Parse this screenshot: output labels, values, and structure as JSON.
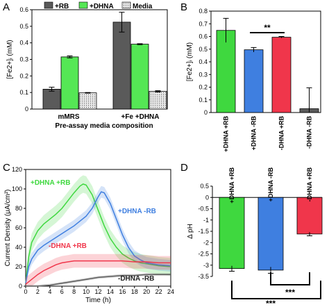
{
  "panel_letters": [
    "A",
    "B",
    "C",
    "D"
  ],
  "colors": {
    "rb": "#5a5a5a",
    "dhna": "#55e755",
    "media_fill": "#e8e8e8",
    "green": "#3fd83f",
    "blue": "#3f7fe0",
    "red": "#f0364b",
    "dark": "#5a5a5a"
  },
  "chart_data": [
    {
      "panel": "A",
      "type": "bar",
      "title": "",
      "xlabel": "Pre-assay media composition",
      "ylabel": "[Fe2+]ᵢ (mM)",
      "ylim": [
        0,
        0.6
      ],
      "yticks": [
        "0",
        "0.1",
        "0.2",
        "0.3",
        "0.4",
        "0.5",
        "0.6"
      ],
      "categories": [
        "mMRS",
        "+Fe +DHNA"
      ],
      "legend_position": "top",
      "series": [
        {
          "name": "+RB",
          "values": [
            0.12,
            0.525
          ],
          "errors": [
            0.012,
            0.06
          ]
        },
        {
          "name": "+DHNA",
          "values": [
            0.315,
            0.392
          ],
          "errors": [
            0.006,
            0.003
          ]
        },
        {
          "name": "Media",
          "values": [
            0.098,
            0.107
          ],
          "errors": [
            0.002,
            0.004
          ]
        }
      ]
    },
    {
      "panel": "B",
      "type": "bar",
      "title": "",
      "xlabel": "",
      "ylabel": "[Fe2+]ᵢ (mM)",
      "ylim": [
        0,
        0.8
      ],
      "yticks": [
        "0",
        "0.1",
        "0.2",
        "0.3",
        "0.4",
        "0.5",
        "0.6",
        "0.7",
        "0.8"
      ],
      "categories": [
        "+DHNA +RB",
        "+DHNA -RB",
        "-DHNA +RB",
        "-DHNA -RB"
      ],
      "values": [
        0.648,
        0.495,
        0.594,
        0.03
      ],
      "errors": [
        0.095,
        0.018,
        0.006,
        0.165
      ],
      "annotation": "**"
    },
    {
      "panel": "C",
      "type": "line",
      "title": "",
      "xlabel": "Time (h)",
      "ylabel": "Current Density (μA/cm²)",
      "xlim": [
        0,
        24
      ],
      "ylim": [
        0,
        120
      ],
      "xticks": [
        "0",
        "2",
        "4",
        "6",
        "8",
        "10",
        "12",
        "14",
        "16",
        "18",
        "20",
        "22",
        "24"
      ],
      "yticks": [
        "0",
        "20",
        "40",
        "60",
        "80",
        "100",
        "120"
      ],
      "series": [
        {
          "name": "+DHNA +RB",
          "x": [
            0,
            0.5,
            1,
            2,
            3,
            4,
            5,
            6,
            7,
            8,
            9,
            9.5,
            10,
            11,
            12,
            13,
            14,
            15,
            16,
            17,
            18,
            19,
            20,
            22,
            24
          ],
          "y": [
            3,
            30,
            45,
            57,
            64,
            69,
            74,
            80,
            88,
            96,
            103,
            105,
            104,
            94,
            78,
            62,
            49,
            40,
            33,
            29,
            26,
            24,
            23,
            21,
            20
          ],
          "band": 9
        },
        {
          "name": "+DHNA -RB",
          "x": [
            0,
            0.5,
            1,
            2,
            3,
            4,
            5,
            6,
            7,
            8,
            9,
            10,
            11,
            12,
            12.5,
            13,
            14,
            15,
            16,
            17,
            18,
            19,
            20,
            22,
            24
          ],
          "y": [
            3,
            20,
            28,
            37,
            42,
            46,
            50,
            54,
            58,
            62,
            67,
            72,
            80,
            92,
            97,
            96,
            85,
            69,
            53,
            40,
            31,
            27,
            24,
            22,
            21
          ],
          "band": 6
        },
        {
          "name": "-DHNA +RB",
          "x": [
            0,
            1,
            2,
            3,
            4,
            5,
            6,
            7,
            8,
            10,
            12,
            14,
            16,
            18,
            20,
            22,
            24
          ],
          "y": [
            2,
            7,
            12,
            16,
            19,
            22,
            24,
            25,
            26,
            26,
            26,
            26,
            26,
            25,
            25,
            24,
            24
          ],
          "band": 7
        },
        {
          "name": "-DHNA -RB",
          "x": [
            0,
            2,
            4,
            6,
            8,
            10,
            12,
            14,
            16,
            18,
            20,
            22,
            24
          ],
          "y": [
            0,
            0,
            1,
            3,
            5,
            7,
            9,
            10,
            11,
            11,
            12,
            12,
            12
          ],
          "band": 1.5
        }
      ]
    },
    {
      "panel": "D",
      "type": "bar",
      "title": "",
      "xlabel": "",
      "ylabel": "Δ pH",
      "ylim": [
        -3.5,
        0.5
      ],
      "yticks": [
        "0.5",
        "0",
        "-0.5",
        "-1",
        "-1.5",
        "-2",
        "-2.5",
        "-3",
        "-3.5"
      ],
      "categories": [
        "+DHNA +RB",
        "+DHNA -RB",
        "-DHNA +RB"
      ],
      "values": [
        -3.15,
        -3.22,
        -1.62
      ],
      "errors": [
        0.12,
        0.14,
        0.08
      ],
      "annotations": [
        "***",
        "***"
      ]
    }
  ]
}
